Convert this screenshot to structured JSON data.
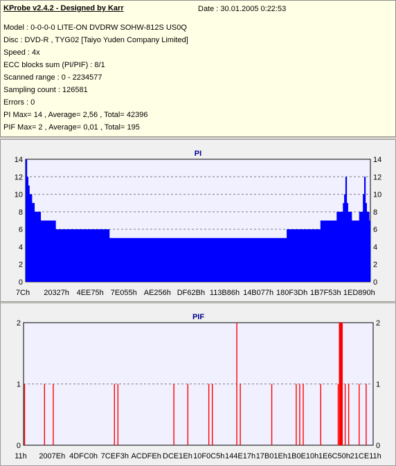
{
  "header": {
    "title": "KProbe v2.4.2 - Designed by Karr",
    "date": "Date : 30.01.2005 0:22:53"
  },
  "info_lines": [
    "Model : 0-0-0-0 LITE-ON DVDRW SOHW-812S  US0Q",
    "Disc : DVD-R , TYG02 [Taiyo Yuden Company Limited]",
    "Speed : 4x",
    "ECC blocks sum (PI/PIF) : 8/1",
    "Scanned range : 0 - 2234577",
    "Sampling count : 126581",
    "Errors : 0",
    "PI Max= 14 , Average= 2,56 , Total= 42396",
    "PIF Max= 2 , Average= 0,01 , Total= 195"
  ],
  "colors": {
    "pi_bar": "#0000ff",
    "pif_bar": "#ff0000",
    "plot_bg": "#f0f0ff",
    "title": "#00008b"
  },
  "chart_data": [
    {
      "type": "bar",
      "title": "PI",
      "ylim": [
        0,
        14
      ],
      "yticks": [
        "0",
        "2",
        "4",
        "6",
        "8",
        "10",
        "12",
        "14"
      ],
      "xtick_labels": [
        "7Ch",
        "20327h",
        "4EE75h",
        "7E055h",
        "AE256h",
        "DF62Bh",
        "113B86h",
        "14B077h",
        "180F3Dh",
        "1B7F53h",
        "1ED890h"
      ],
      "grid": true,
      "series": [
        {
          "values": [
            14,
            12,
            11,
            10,
            10,
            9,
            9,
            8,
            8,
            8,
            8,
            8,
            7,
            7,
            7,
            7,
            7,
            7,
            7,
            7,
            7,
            7,
            7,
            7,
            6,
            6,
            6,
            6,
            6,
            6,
            6,
            6,
            6,
            6,
            6,
            6,
            6,
            6,
            6,
            6,
            6,
            6,
            6,
            6,
            6,
            6,
            6,
            6,
            6,
            6,
            6,
            6,
            6,
            6,
            6,
            6,
            6,
            6,
            6,
            6,
            6,
            6,
            6,
            6,
            6,
            6,
            6,
            5,
            5,
            5,
            5,
            5,
            5,
            5,
            5,
            5,
            5,
            5,
            5,
            5,
            5,
            5,
            5,
            5,
            5,
            5,
            5,
            5,
            5,
            5,
            5,
            5,
            5,
            5,
            5,
            5,
            5,
            5,
            5,
            5,
            5,
            5,
            5,
            5,
            5,
            5,
            5,
            5,
            5,
            5,
            5,
            5,
            5,
            5,
            5,
            5,
            5,
            5,
            5,
            5,
            5,
            5,
            5,
            5,
            5,
            5,
            5,
            5,
            5,
            5,
            5,
            5,
            5,
            5,
            5,
            5,
            5,
            5,
            5,
            5,
            5,
            5,
            5,
            5,
            5,
            5,
            5,
            5,
            5,
            5,
            5,
            5,
            5,
            5,
            5,
            5,
            5,
            5,
            5,
            5,
            5,
            5,
            5,
            5,
            5,
            5,
            5,
            5,
            5,
            5,
            5,
            5,
            5,
            5,
            5,
            5,
            5,
            5,
            5,
            5,
            5,
            5,
            5,
            5,
            5,
            5,
            5,
            5,
            5,
            5,
            5,
            5,
            5,
            5,
            5,
            5,
            5,
            5,
            5,
            5,
            5,
            5,
            5,
            5,
            5,
            5,
            5,
            5,
            5,
            6,
            6,
            6,
            6,
            6,
            6,
            6,
            6,
            6,
            6,
            6,
            6,
            6,
            6,
            6,
            6,
            6,
            6,
            6,
            6,
            6,
            6,
            6,
            6,
            6,
            6,
            6,
            7,
            7,
            7,
            7,
            7,
            7,
            7,
            7,
            7,
            7,
            7,
            7,
            7,
            8,
            8,
            8,
            8,
            8,
            9,
            10,
            12,
            9,
            8,
            8,
            8,
            7,
            7,
            7,
            7,
            7,
            7,
            8,
            8,
            8,
            10,
            12,
            9,
            8,
            8,
            7
          ]
        }
      ]
    },
    {
      "type": "bar",
      "title": "PIF",
      "ylim": [
        0,
        2
      ],
      "yticks": [
        "0",
        "1",
        "2"
      ],
      "xtick_labels": [
        "11h",
        "2007Eh",
        "4DFC0h",
        "7CEF3h",
        "ACDFEh",
        "DCE1Eh",
        "10F0C5h",
        "144E17h",
        "17B01Eh",
        "1B0E10h",
        "1E6C50h",
        "21CE11h"
      ],
      "grid": true,
      "series": [
        {
          "x": [
            0.003,
            0.06,
            0.085,
            0.26,
            0.27,
            0.43,
            0.47,
            0.53,
            0.54,
            0.62,
            0.71,
            0.78,
            0.79,
            0.8,
            0.85,
            0.9,
            0.91,
            0.92,
            0.93,
            0.96,
            0.98
          ],
          "values": [
            1,
            1,
            1,
            1,
            1,
            1,
            1,
            1,
            1,
            1,
            1,
            1,
            1,
            1,
            1,
            1,
            1,
            1,
            1,
            1,
            1
          ],
          "spikes": [
            {
              "pos": 0.61,
              "value": 2
            },
            {
              "pos": 0.905,
              "value": 2
            },
            {
              "pos": 0.91,
              "value": 2
            }
          ]
        }
      ]
    }
  ]
}
